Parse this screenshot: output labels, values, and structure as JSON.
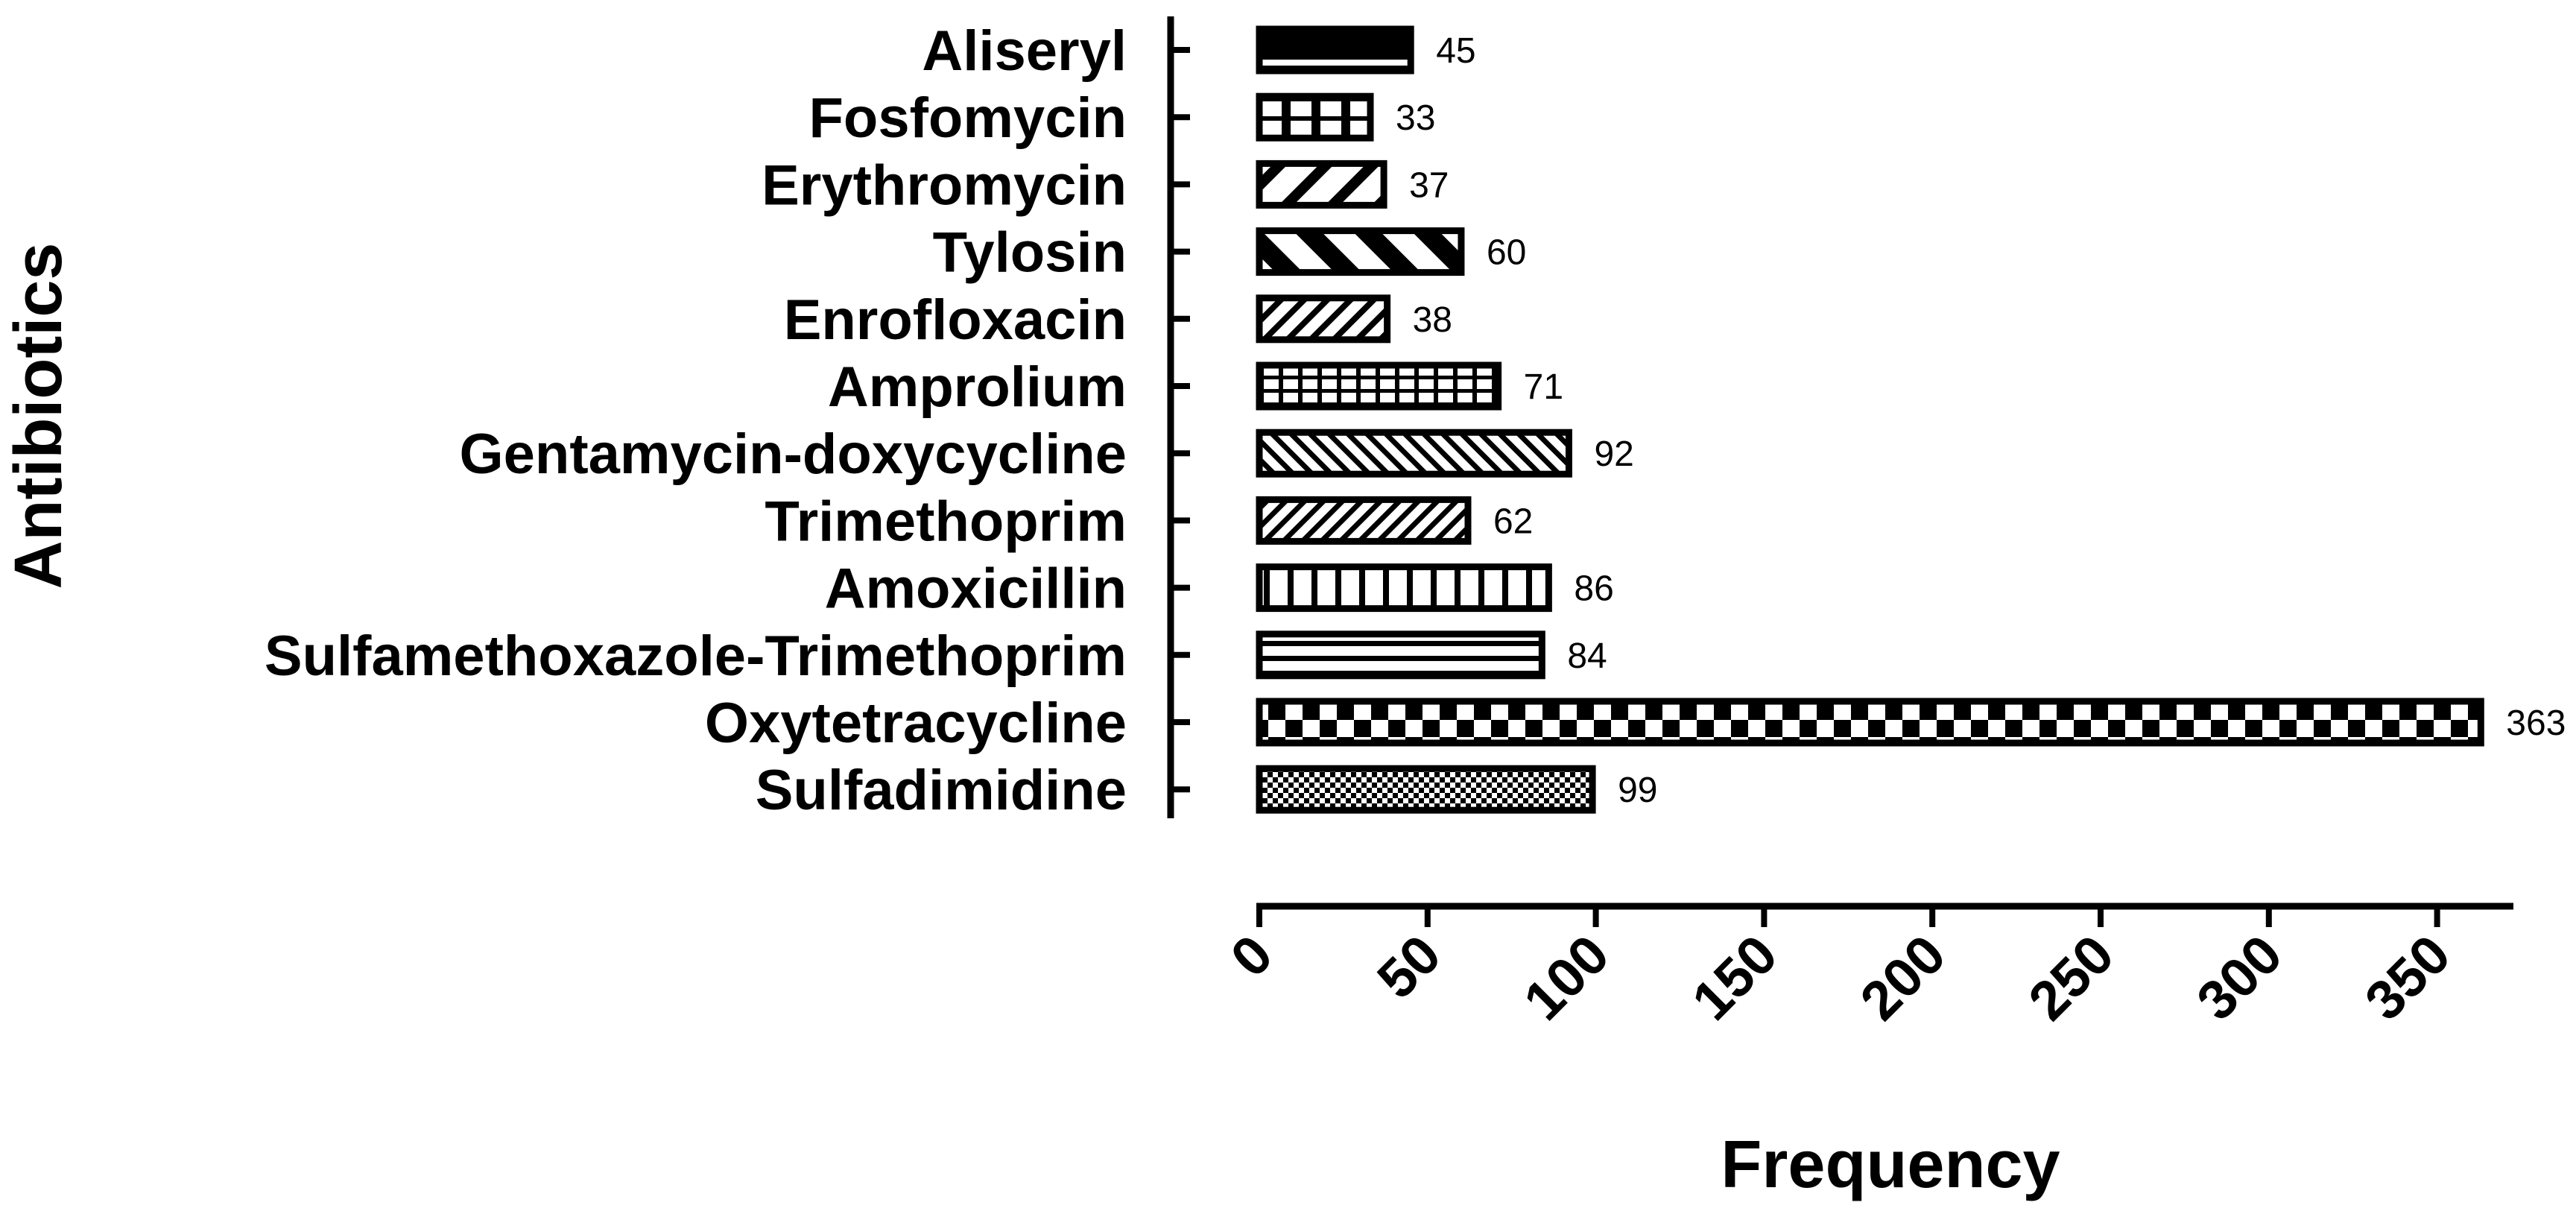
{
  "chart_data": {
    "type": "bar",
    "orientation": "horizontal",
    "title": "",
    "xlabel": "Frequency",
    "ylabel": "Antibiotics",
    "xlim": [
      0,
      370
    ],
    "xticks": [
      0,
      50,
      100,
      150,
      200,
      250,
      300,
      350
    ],
    "tick_labels": [
      "0",
      "50",
      "100",
      "150",
      "200",
      "250",
      "300",
      "350"
    ],
    "grid": false,
    "legend": "none",
    "categories": [
      "Aliseryl",
      "Fosfomycin",
      "Erythromycin",
      "Tylosin",
      "Enrofloxacin",
      "Amprolium",
      "Gentamycin-doxycycline",
      "Trimethoprim",
      "Amoxicillin",
      "Sulfamethoxazole-Trimethoprim",
      "Oxytetracycline",
      "Sulfadimidine"
    ],
    "values": [
      45,
      33,
      37,
      60,
      38,
      71,
      92,
      62,
      86,
      84,
      363,
      99
    ],
    "value_labels": [
      "45",
      "33",
      "37",
      "60",
      "38",
      "71",
      "92",
      "62",
      "86",
      "84",
      "363",
      "99"
    ],
    "patterns": [
      "horizontal-double-line",
      "large-grid",
      "wide-diagonal-up",
      "wide-diagonal-down",
      "fine-diagonal-up",
      "small-grid",
      "diagonal-down",
      "diagonal-up",
      "vertical",
      "horizontal",
      "checkerboard",
      "small-checkerboard"
    ],
    "colors": {
      "bar_outline": "#000000",
      "bar_fill": "#ffffff",
      "axis": "#000000"
    }
  }
}
